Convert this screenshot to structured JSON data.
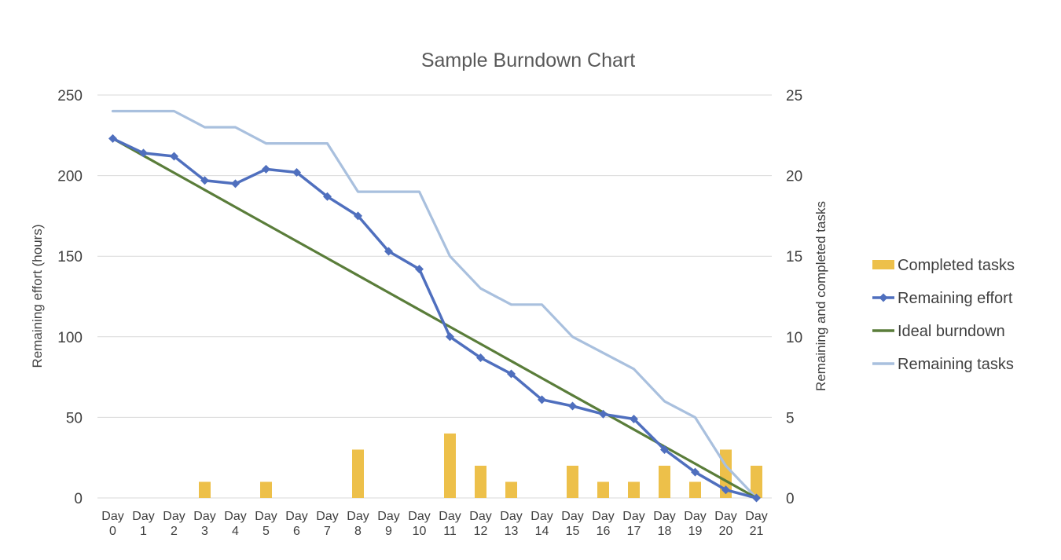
{
  "chart_data": {
    "type": "bar+line",
    "title": "Sample Burndown Chart",
    "ylabel_left": "Remaining effort (hours)",
    "ylabel_right": "Remaining and completed tasks",
    "ylim_left": [
      0,
      250
    ],
    "yticks_left": [
      0,
      50,
      100,
      150,
      200,
      250
    ],
    "ylim_right": [
      0,
      25
    ],
    "yticks_right": [
      0,
      5,
      10,
      15,
      20,
      25
    ],
    "grid": true,
    "legend_position": "right",
    "categories": [
      {
        "top": "Day",
        "bottom": "0"
      },
      {
        "top": "Day",
        "bottom": "1"
      },
      {
        "top": "Day",
        "bottom": "2"
      },
      {
        "top": "Day",
        "bottom": "3"
      },
      {
        "top": "Day",
        "bottom": "4"
      },
      {
        "top": "Day",
        "bottom": "5"
      },
      {
        "top": "Day",
        "bottom": "6"
      },
      {
        "top": "Day",
        "bottom": "7"
      },
      {
        "top": "Day",
        "bottom": "8"
      },
      {
        "top": "Day",
        "bottom": "9"
      },
      {
        "top": "Day",
        "bottom": "10"
      },
      {
        "top": "Day",
        "bottom": "11"
      },
      {
        "top": "Day",
        "bottom": "12"
      },
      {
        "top": "Day",
        "bottom": "13"
      },
      {
        "top": "Day",
        "bottom": "14"
      },
      {
        "top": "Day",
        "bottom": "15"
      },
      {
        "top": "Day",
        "bottom": "16"
      },
      {
        "top": "Day",
        "bottom": "17"
      },
      {
        "top": "Day",
        "bottom": "18"
      },
      {
        "top": "Day",
        "bottom": "19"
      },
      {
        "top": "Day",
        "bottom": "20"
      },
      {
        "top": "Day",
        "bottom": "21"
      }
    ],
    "series": [
      {
        "name": "Completed tasks",
        "type": "bar",
        "axis": "right",
        "color": "#EDC04A",
        "values": [
          0,
          0,
          0,
          1,
          0,
          1,
          0,
          0,
          3,
          0,
          0,
          4,
          2,
          1,
          0,
          2,
          1,
          1,
          2,
          1,
          3,
          2
        ]
      },
      {
        "name": "Remaining effort",
        "type": "line-marker",
        "axis": "left",
        "color": "#4F6FBE",
        "values": [
          223,
          214,
          212,
          197,
          195,
          204,
          202,
          187,
          175,
          153,
          142,
          100,
          87,
          77,
          61,
          57,
          52,
          49,
          30,
          16,
          5,
          0
        ]
      },
      {
        "name": "Ideal burndown",
        "type": "line",
        "axis": "left",
        "color": "#5A7D3A",
        "values": [
          223,
          212.38,
          201.76,
          191.14,
          180.52,
          169.9,
          159.29,
          148.67,
          138.05,
          127.43,
          116.81,
          106.19,
          95.57,
          84.95,
          74.33,
          63.71,
          53.1,
          42.48,
          31.86,
          21.24,
          10.62,
          0
        ]
      },
      {
        "name": "Remaining tasks",
        "type": "line",
        "axis": "right",
        "color": "#A9C0DE",
        "values": [
          24,
          24,
          24,
          23,
          23,
          22,
          22,
          22,
          19,
          19,
          19,
          15,
          13,
          12,
          12,
          10,
          9,
          8,
          6,
          5,
          2,
          0
        ]
      }
    ]
  }
}
